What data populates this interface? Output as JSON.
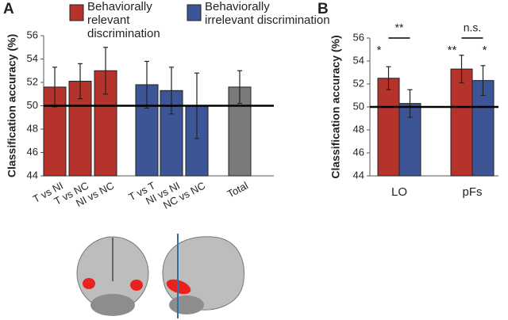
{
  "chart_data": [
    {
      "type": "bar",
      "panel": "A",
      "y_label": "Classification accuracy (%)",
      "categories": [
        "T vs NI",
        "T vs NC",
        "NI vs NC",
        "T vs T",
        "NI vs NI",
        "NC vs NC",
        "Total"
      ],
      "values": [
        51.6,
        52.1,
        53.0,
        51.8,
        51.3,
        50.0,
        51.6
      ],
      "errors": [
        1.7,
        1.5,
        2.0,
        2.0,
        2.0,
        2.8,
        1.4
      ],
      "colors": [
        "#b5332a",
        "#b5332a",
        "#b5332a",
        "#3b5597",
        "#3b5597",
        "#3b5597",
        "#7a7a7a"
      ],
      "legend": [
        {
          "label": [
            "Behaviorally",
            "relevant",
            "discrimination"
          ],
          "color": "#b5332a"
        },
        {
          "label": [
            "Behaviorally",
            "irrelevant discrimination"
          ],
          "color": "#3b5597"
        }
      ],
      "ylim": [
        44,
        56
      ],
      "yticks": [
        44,
        46,
        48,
        50,
        52,
        54,
        56
      ],
      "ref_line": 50
    },
    {
      "type": "grouped_bar",
      "panel": "B",
      "y_label": "Classification accuracy (%)",
      "categories": [
        "LO",
        "pFs"
      ],
      "series": [
        {
          "color": "#b5332a",
          "values": [
            52.5,
            53.3
          ],
          "errors": [
            1.0,
            1.2
          ],
          "sig": [
            "*",
            "**"
          ]
        },
        {
          "color": "#3b5597",
          "values": [
            50.3,
            52.3
          ],
          "errors": [
            1.2,
            1.3
          ],
          "sig": [
            null,
            "*"
          ]
        }
      ],
      "pair_sig": [
        "**",
        "n.s."
      ],
      "ylim": [
        44,
        56
      ],
      "yticks": [
        44,
        46,
        48,
        50,
        52,
        54,
        56
      ],
      "ref_line": 50
    }
  ]
}
